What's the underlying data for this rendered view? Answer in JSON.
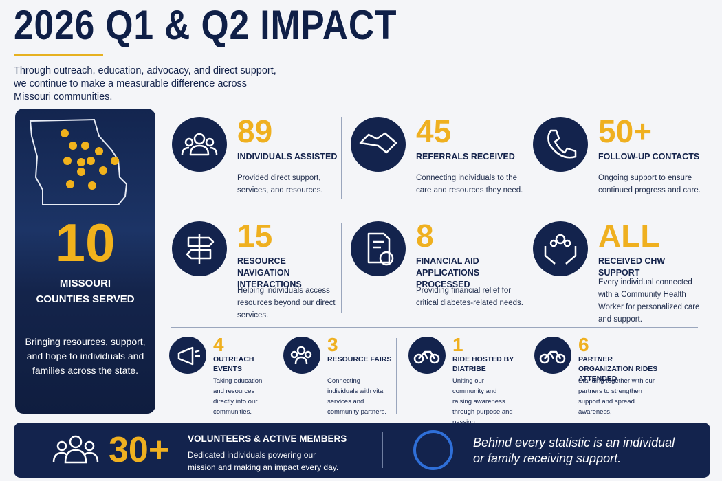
{
  "header": {
    "title": "2026 Q1 & Q2 IMPACT",
    "subtitle": "Through outreach, education, advocacy, and direct support, we continue to make a measurable difference across Missouri communities."
  },
  "county_panel": {
    "value": 10,
    "label": "MISSOURI COUNTIES SERVED",
    "text": "Bringing resources, support, and hope to individuals and families across the state."
  },
  "stats": [
    {
      "value": 89,
      "label": "INDIVIDUALS ASSISTED",
      "text": "Provided direct support, services, and resources."
    },
    {
      "value": 45,
      "label": "REFERRALS RECEIVED",
      "text": "Connecting individuals to the care and resources they need."
    },
    {
      "value": "50+",
      "label": "FOLLOW-UP CONTACTS",
      "text": "Ongoing support to ensure continued progress and care."
    },
    {
      "value": 15,
      "label": "RESOURCE NAVIGATION INTERACTIONS",
      "text": "Helping individuals access resources beyond our direct services."
    },
    {
      "value": 8,
      "label": "FINANCIAL AID APPLICATIONS PROCESSED",
      "text": "Providing financial relief for critical diabetes-related needs."
    },
    {
      "value": "ALL",
      "label": "RECEIVED CHW SUPPORT",
      "text": "Every individual connected with a Community Health Worker for personalized care and support."
    }
  ],
  "small_stats": [
    {
      "value": 4,
      "label": "OUTREACH EVENTS",
      "text": "Taking education and resources directly into our communities."
    },
    {
      "value": 3,
      "label": "RESOURCE FAIRS",
      "text": "Connecting individuals with vital services and community partners."
    },
    {
      "value": 1,
      "label": "RIDE HOSTED BY DIATRIBE",
      "text": "Uniting our community and raising awareness through purpose and passion."
    },
    {
      "value": 6,
      "label": "PARTNER ORGANIZATION RIDES ATTENDED",
      "text": "Standing together with our partners to strengthen support and spread awareness."
    }
  ],
  "footer": {
    "value": "30+",
    "label": "VOLUNTEERS & ACTIVE MEMBERS",
    "text": "Dedicated individuals powering our mission and making an impact every day.",
    "quote": "Behind every statistic is an individual or family receiving support."
  }
}
